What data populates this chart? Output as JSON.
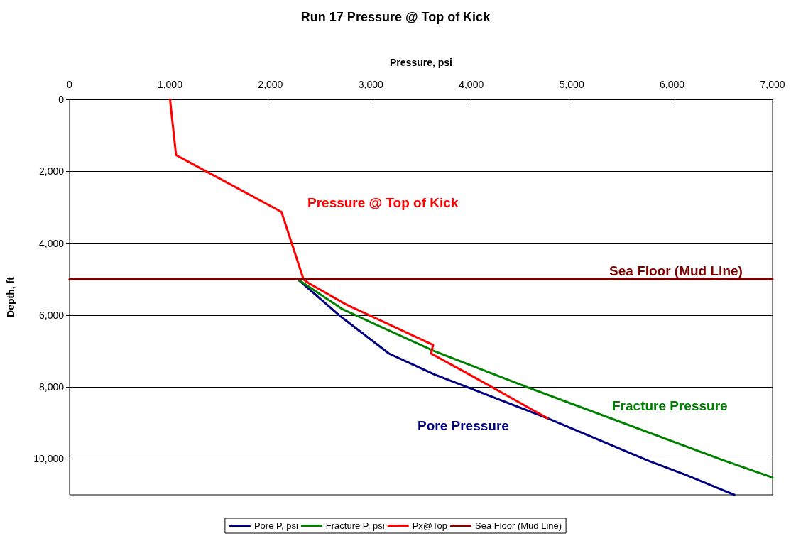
{
  "chart_data": {
    "type": "line",
    "title": "Run 17 Pressure @ Top of Kick",
    "xlabel": "Pressure, psi",
    "ylabel": "Depth, ft",
    "xlim": [
      0,
      7000
    ],
    "xticks": [
      0,
      {
        "value": 1000,
        "label": "1,000"
      },
      {
        "value": 2000,
        "label": "2,000"
      },
      {
        "value": 3000,
        "label": "3,000"
      },
      {
        "value": 4000,
        "label": "4,000"
      },
      {
        "value": 5000,
        "label": "5,000"
      },
      {
        "value": 6000,
        "label": "6,000"
      },
      {
        "value": 7000,
        "label": "7,000"
      }
    ],
    "ylim": [
      11000,
      0
    ],
    "yticks": [
      0,
      {
        "value": 2000,
        "label": "2,000"
      },
      {
        "value": 4000,
        "label": "4,000"
      },
      {
        "value": 6000,
        "label": "6,000"
      },
      {
        "value": 8000,
        "label": "8,000"
      },
      {
        "value": 10000,
        "label": "10,000"
      }
    ],
    "grid": "y",
    "legend": "bottom",
    "marker": "none",
    "line_style": "solid",
    "series": [
      {
        "name": "Pore P, psi",
        "color": "#000080",
        "x": [
          2270,
          2700,
          3180,
          3640,
          4760,
          5770,
          6140,
          6620
        ],
        "values": [
          5000,
          6040,
          7070,
          7660,
          8870,
          10060,
          10450,
          11000
        ]
      },
      {
        "name": "Fracture P, psi",
        "color": "#008000",
        "x": [
          2270,
          2720,
          3620,
          4570,
          6530,
          7000
        ],
        "values": [
          5000,
          5840,
          6990,
          8020,
          10060,
          10520
        ]
      },
      {
        "name": "Px@Top",
        "color": "#ff0000",
        "x": [
          1000,
          1060,
          2110,
          2330,
          2380,
          2750,
          3620,
          3600,
          3960,
          4760
        ],
        "values": [
          0,
          1550,
          3130,
          5010,
          5110,
          5700,
          6830,
          7070,
          7620,
          8870
        ]
      },
      {
        "name": "Sea Floor (Mud Line)",
        "color": "#800000",
        "x": [
          0,
          7000
        ],
        "values": [
          5000,
          5000
        ]
      }
    ],
    "annotations": [
      "Pressure @ Top of Kick",
      "Sea Floor (Mud Line)",
      "Fracture Pressure",
      "Pore Pressure"
    ]
  }
}
